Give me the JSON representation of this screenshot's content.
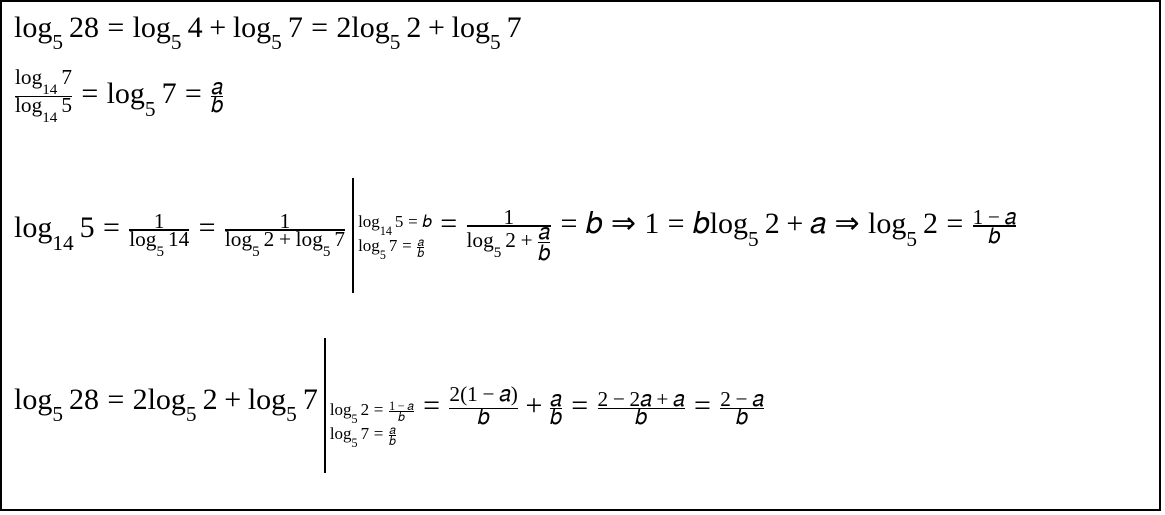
{
  "colors": {
    "text": "#000000",
    "background": "#ffffff",
    "border": "#000000"
  },
  "font": {
    "family": "Times New Roman",
    "size_main_pt": 22,
    "size_sub_pt": 13
  },
  "row1": {
    "lhs": "log_5 28",
    "mid": "log_5 4 + log_5 7",
    "rhs": "2 log_5 2 + log_5 7"
  },
  "row2": {
    "frac_num": "log_14 7",
    "frac_den": "log_14 5",
    "mid": "log_5 7",
    "rhs": "a / b"
  },
  "row3": {
    "lhs": "log_14 5",
    "step1_den": "log_5 14",
    "step2_den": "log_5 2 + log_5 7",
    "subs": {
      "s1": "log_14 5 = b",
      "s2": "log_5 7 = a / b"
    },
    "step3_den": "log_5 2 + a/b",
    "eq_b": "b",
    "impl1": "1 = b log_5 2 + a",
    "impl2": "log_5 2 = (1 - a) / b"
  },
  "row4": {
    "lhs": "log_5 28",
    "step0": "2 log_5 2 + log_5 7",
    "subs": {
      "s1": "log_5 2 = (1 - a) / b",
      "s2": "log_5 7 = a / b"
    },
    "step1": "2(1 - a)/b + a/b",
    "step2": "(2 - 2a + a) / b",
    "step3": "(2 - a) / b"
  }
}
